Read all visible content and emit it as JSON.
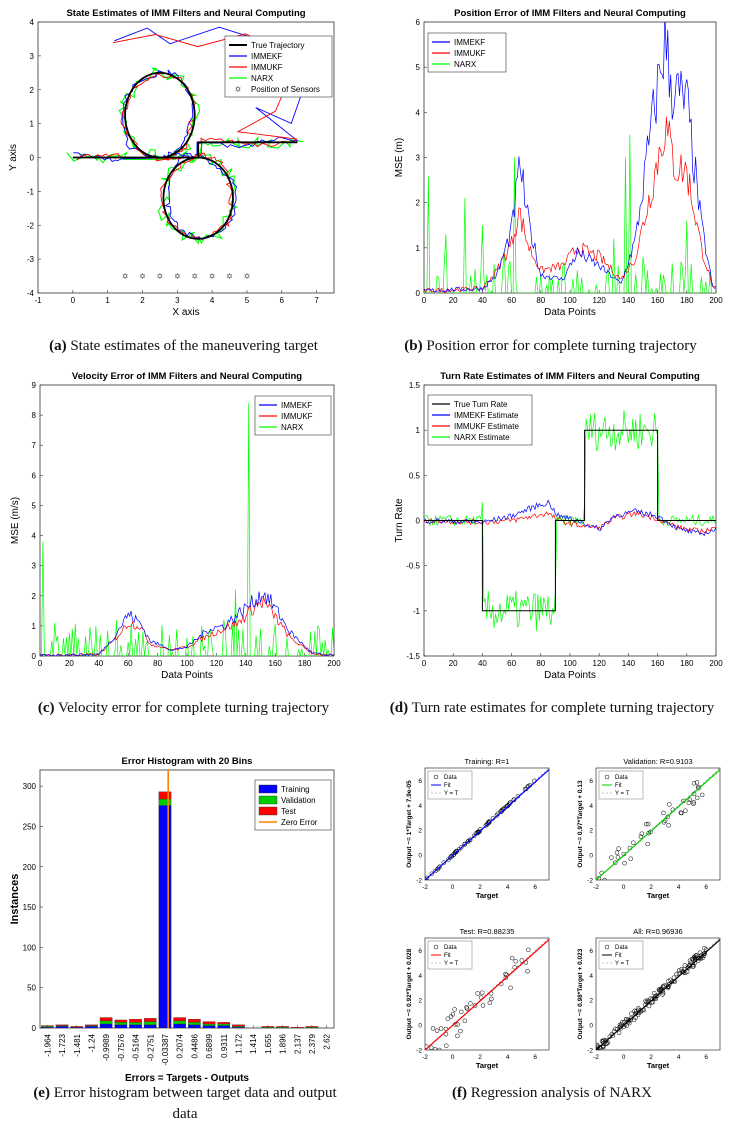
{
  "chart_data": [
    {
      "id": "a",
      "type": "line",
      "title": "State Estimates of IMM Filters and Neural Computing",
      "xlabel": "X axis",
      "ylabel": "Y axis",
      "xlim": [
        -1,
        7.5
      ],
      "ylim": [
        -4,
        4
      ],
      "xticks": [
        -1,
        0,
        1,
        2,
        3,
        4,
        5,
        6,
        7
      ],
      "yticks": [
        -4,
        -3,
        -2,
        -1,
        0,
        1,
        2,
        3,
        4
      ],
      "legend_position": "top-right",
      "legend": [
        "True Trajectory",
        "IMMEKF",
        "IMMUKF",
        "NARX",
        "Position of Sensors"
      ],
      "colors": [
        "#000000",
        "#0000ff",
        "#ff0000",
        "#00ff00",
        "#666666"
      ],
      "sensors_x": [
        1.5,
        2,
        2.5,
        3,
        3.5,
        4,
        4.5,
        5
      ],
      "sensors_y": -3.5,
      "caption_label": "(a)",
      "caption_text": "State estimates of the maneuvering target"
    },
    {
      "id": "b",
      "type": "line",
      "title": "Position Error of IMM Filters and Neural Computing",
      "xlabel": "Data Points",
      "ylabel": "MSE (m)",
      "xlim": [
        0,
        200
      ],
      "ylim": [
        0,
        6
      ],
      "xticks": [
        0,
        20,
        40,
        60,
        80,
        100,
        120,
        140,
        160,
        180,
        200
      ],
      "yticks": [
        0,
        1,
        2,
        3,
        4,
        5,
        6
      ],
      "legend_position": "top-left",
      "series": [
        {
          "name": "IMMEKF",
          "color": "#0000ff",
          "points": [
            [
              0,
              0.05
            ],
            [
              40,
              0.1
            ],
            [
              50,
              0.4
            ],
            [
              60,
              1.4
            ],
            [
              66,
              2.9
            ],
            [
              70,
              1.8
            ],
            [
              80,
              0.4
            ],
            [
              95,
              0.3
            ],
            [
              105,
              0.9
            ],
            [
              120,
              0.6
            ],
            [
              135,
              0.2
            ],
            [
              145,
              1.2
            ],
            [
              155,
              3.5
            ],
            [
              165,
              5.6
            ],
            [
              170,
              4.5
            ],
            [
              180,
              4.2
            ],
            [
              190,
              1.5
            ],
            [
              198,
              0.1
            ]
          ]
        },
        {
          "name": "IMMUKF",
          "color": "#ff0000",
          "points": [
            [
              0,
              0.05
            ],
            [
              40,
              0.1
            ],
            [
              50,
              0.5
            ],
            [
              60,
              1.1
            ],
            [
              65,
              1.8
            ],
            [
              72,
              1.0
            ],
            [
              80,
              0.5
            ],
            [
              95,
              0.6
            ],
            [
              105,
              1.0
            ],
            [
              120,
              0.8
            ],
            [
              135,
              0.3
            ],
            [
              145,
              0.8
            ],
            [
              155,
              2.2
            ],
            [
              165,
              3.7
            ],
            [
              172,
              2.8
            ],
            [
              180,
              2.7
            ],
            [
              190,
              1.0
            ],
            [
              198,
              0.1
            ]
          ]
        },
        {
          "name": "NARX",
          "color": "#00ff00",
          "spikes": [
            [
              3,
              2.6
            ],
            [
              15,
              1.3
            ],
            [
              28,
              2.1
            ],
            [
              40,
              1.5
            ],
            [
              55,
              0.9
            ],
            [
              62,
              3.0
            ],
            [
              80,
              0.4
            ],
            [
              88,
              0.3
            ],
            [
              105,
              0.5
            ],
            [
              130,
              1.2
            ],
            [
              138,
              3.0
            ],
            [
              141,
              3.5
            ],
            [
              150,
              0.8
            ],
            [
              180,
              1.6
            ]
          ]
        }
      ],
      "caption_label": "(b)",
      "caption_text": "Position error for complete turning trajectory"
    },
    {
      "id": "c",
      "type": "line",
      "title": "Velocity Error of IMM Filters and Neural Computing",
      "xlabel": "Data Points",
      "ylabel": "MSE (m/s)",
      "xlim": [
        0,
        200
      ],
      "ylim": [
        0,
        9
      ],
      "xticks": [
        0,
        20,
        40,
        60,
        80,
        100,
        120,
        140,
        160,
        180,
        200
      ],
      "yticks": [
        0,
        1,
        2,
        3,
        4,
        5,
        6,
        7,
        8,
        9
      ],
      "legend_position": "top-right",
      "series": [
        {
          "name": "IMMEKF",
          "color": "#0000ff",
          "points": [
            [
              0,
              0.02
            ],
            [
              40,
              0.05
            ],
            [
              50,
              0.6
            ],
            [
              60,
              1.4
            ],
            [
              68,
              1.1
            ],
            [
              75,
              0.5
            ],
            [
              90,
              0.2
            ],
            [
              100,
              0.3
            ],
            [
              115,
              0.9
            ],
            [
              125,
              1.0
            ],
            [
              135,
              1.4
            ],
            [
              145,
              1.8
            ],
            [
              152,
              2.1
            ],
            [
              160,
              1.6
            ],
            [
              170,
              0.8
            ],
            [
              185,
              0.1
            ],
            [
              195,
              0.02
            ]
          ]
        },
        {
          "name": "IMMUKF",
          "color": "#ff0000",
          "points": [
            [
              0,
              0.02
            ],
            [
              40,
              0.05
            ],
            [
              50,
              0.5
            ],
            [
              60,
              1.1
            ],
            [
              68,
              1.0
            ],
            [
              75,
              0.4
            ],
            [
              90,
              0.2
            ],
            [
              100,
              0.3
            ],
            [
              115,
              0.7
            ],
            [
              125,
              0.9
            ],
            [
              135,
              1.1
            ],
            [
              145,
              1.6
            ],
            [
              152,
              1.8
            ],
            [
              160,
              1.3
            ],
            [
              170,
              0.6
            ],
            [
              185,
              0.1
            ],
            [
              195,
              0.02
            ]
          ]
        },
        {
          "name": "NARX",
          "color": "#00ff00",
          "spikes": [
            [
              2,
              3.8
            ],
            [
              10,
              1.1
            ],
            [
              22,
              0.9
            ],
            [
              38,
              1.0
            ],
            [
              52,
              1.2
            ],
            [
              70,
              0.8
            ],
            [
              88,
              0.7
            ],
            [
              110,
              1.0
            ],
            [
              125,
              1.2
            ],
            [
              133,
              2.2
            ],
            [
              142,
              8.4
            ],
            [
              150,
              0.9
            ],
            [
              168,
              0.6
            ]
          ]
        }
      ],
      "caption_label": "(c)",
      "caption_text": "Velocity error for complete turning trajectory"
    },
    {
      "id": "d",
      "type": "line",
      "title": "Turn Rate Estimates of IMM Filters and Neural Computing",
      "xlabel": "Data Points",
      "ylabel": "Turn Rate",
      "xlim": [
        0,
        200
      ],
      "ylim": [
        -1.5,
        1.5
      ],
      "xticks": [
        0,
        20,
        40,
        60,
        80,
        100,
        120,
        140,
        160,
        180,
        200
      ],
      "yticks": [
        -1.5,
        -1,
        -0.5,
        0,
        0.5,
        1,
        1.5
      ],
      "legend_position": "top-left",
      "series": [
        {
          "name": "True Turn Rate",
          "color": "#000000",
          "points": [
            [
              0,
              0
            ],
            [
              40,
              0
            ],
            [
              40,
              -1
            ],
            [
              90,
              -1
            ],
            [
              90,
              0
            ],
            [
              110,
              0
            ],
            [
              110,
              1
            ],
            [
              160,
              1
            ],
            [
              160,
              0
            ],
            [
              200,
              0
            ]
          ]
        },
        {
          "name": "IMMEKF Estimate",
          "color": "#0000ff",
          "points": [
            [
              0,
              0
            ],
            [
              40,
              -0.02
            ],
            [
              60,
              0.05
            ],
            [
              75,
              0.15
            ],
            [
              85,
              0.2
            ],
            [
              92,
              0.05
            ],
            [
              105,
              0.0
            ],
            [
              120,
              -0.1
            ],
            [
              130,
              0.05
            ],
            [
              145,
              0.1
            ],
            [
              160,
              0.05
            ],
            [
              175,
              -0.1
            ],
            [
              190,
              -0.15
            ],
            [
              200,
              -0.1
            ]
          ]
        },
        {
          "name": "IMMUKF Estimate",
          "color": "#ff0000",
          "points": [
            [
              0,
              0
            ],
            [
              40,
              -0.02
            ],
            [
              60,
              0.0
            ],
            [
              75,
              0.05
            ],
            [
              85,
              0.08
            ],
            [
              92,
              0.0
            ],
            [
              105,
              -0.05
            ],
            [
              120,
              -0.08
            ],
            [
              130,
              0.02
            ],
            [
              145,
              0.08
            ],
            [
              160,
              0.02
            ],
            [
              175,
              -0.08
            ],
            [
              190,
              -0.12
            ],
            [
              200,
              -0.08
            ]
          ]
        },
        {
          "name": "NARX Estimate",
          "color": "#00ff00",
          "noisy": true
        }
      ],
      "caption_label": "(d)",
      "caption_text": "Turn rate estimates for complete turning trajectory"
    },
    {
      "id": "e",
      "type": "bar",
      "title": "Error Histogram with 20 Bins",
      "xlabel": "Errors = Targets - Outputs",
      "ylabel": "Instances",
      "ylim": [
        0,
        320
      ],
      "yticks": [
        0,
        50,
        100,
        150,
        200,
        250,
        300
      ],
      "legend_position": "top-right",
      "categories": [
        "-1.964",
        "-1.723",
        "-1.481",
        "-1.24",
        "-0.9989",
        "-0.7576",
        "-0.5164",
        "-0.2751",
        "-0.03387",
        "0.2074",
        "0.4486",
        "0.6899",
        "0.9311",
        "1.172",
        "1.414",
        "1.655",
        "1.896",
        "2.137",
        "2.379",
        "2.62"
      ],
      "series": [
        {
          "name": "Training",
          "color": "#0000ff",
          "values": [
            1,
            2,
            1,
            2,
            5,
            4,
            4,
            4,
            276,
            5,
            4,
            3,
            3,
            1,
            0,
            0,
            0,
            0,
            0,
            0
          ]
        },
        {
          "name": "Validation",
          "color": "#00cc00",
          "values": [
            1,
            1,
            0,
            1,
            4,
            3,
            3,
            4,
            8,
            4,
            3,
            2,
            2,
            1,
            0,
            1,
            1,
            0,
            1,
            0
          ]
        },
        {
          "name": "Test",
          "color": "#ff0000",
          "values": [
            1,
            1,
            1,
            1,
            4,
            3,
            4,
            4,
            9,
            4,
            4,
            3,
            2,
            2,
            0,
            1,
            1,
            1,
            1,
            0
          ]
        }
      ],
      "zero_error_label": "Zero Error",
      "zero_error_color": "#ff8000",
      "caption_label": "(e)",
      "caption_text": "Error histogram between target data and output data"
    },
    {
      "id": "f",
      "type": "scatter",
      "caption_label": "(f)",
      "caption_text": "Regression analysis of NARX",
      "subplots": [
        {
          "title": "Training: R=1",
          "ylabel": "Output ~= 1*Target + 7.9e-05",
          "xlabel": "Target",
          "fit_color": "#0000ff",
          "xlim": [
            -2,
            7
          ],
          "ylim": [
            -2,
            7
          ],
          "ticks": [
            -2,
            0,
            2,
            4,
            6
          ],
          "legend": [
            "Data",
            "Fit",
            "Y = T"
          ],
          "r": 1.0
        },
        {
          "title": "Validation: R=0.9103",
          "ylabel": "Output ~= 0.97*Target + 0.13",
          "xlabel": "Target",
          "fit_color": "#00cc00",
          "xlim": [
            -2,
            7
          ],
          "ylim": [
            -2,
            7
          ],
          "ticks": [
            -2,
            0,
            2,
            4,
            6
          ],
          "legend": [
            "Data",
            "Fit",
            "Y = T"
          ],
          "r": 0.9103
        },
        {
          "title": "Test: R=0.88235",
          "ylabel": "Output ~= 0.92*Target + 0.028",
          "xlabel": "Target",
          "fit_color": "#ff0000",
          "xlim": [
            -2,
            7
          ],
          "ylim": [
            -2,
            7
          ],
          "ticks": [
            -2,
            0,
            2,
            4,
            6
          ],
          "legend": [
            "Data",
            "Fit",
            "Y = T"
          ],
          "r": 0.88235
        },
        {
          "title": "All: R=0.96936",
          "ylabel": "Output ~= 0.98*Target + 0.023",
          "xlabel": "Target",
          "fit_color": "#000000",
          "xlim": [
            -2,
            7
          ],
          "ylim": [
            -2,
            7
          ],
          "ticks": [
            -2,
            0,
            2,
            4,
            6
          ],
          "legend": [
            "Data",
            "Fit",
            "Y = T"
          ],
          "r": 0.96936
        }
      ]
    }
  ]
}
